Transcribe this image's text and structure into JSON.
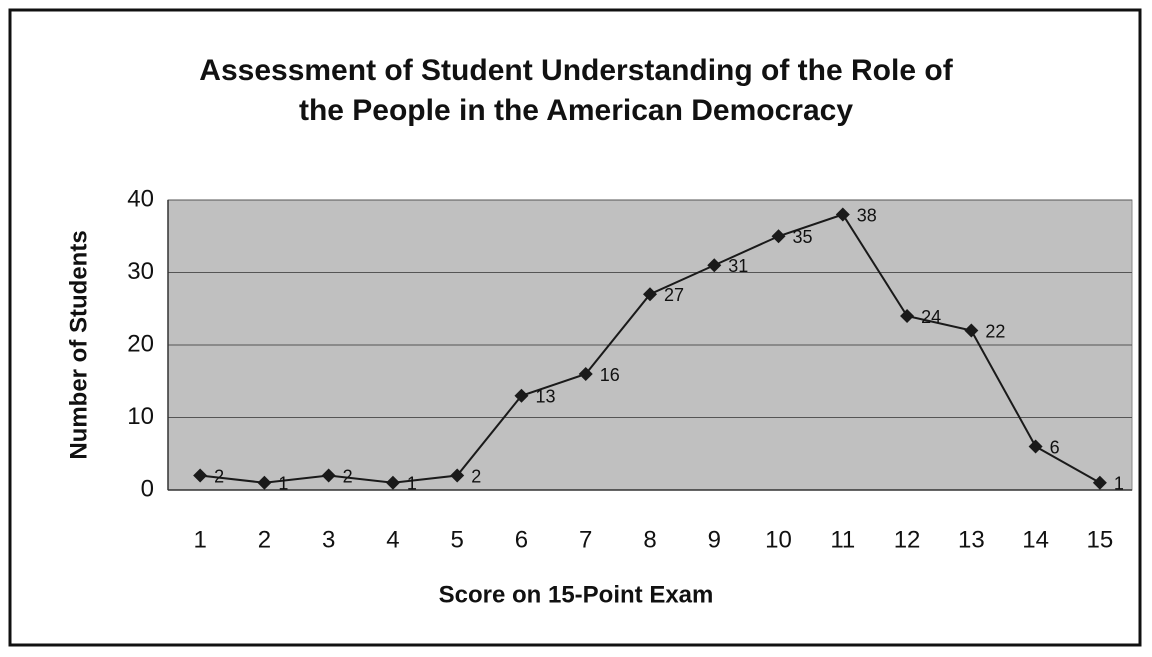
{
  "chart_data": {
    "type": "line",
    "title": [
      "Assessment of Student Understanding of the Role of",
      "the People in the American Democracy"
    ],
    "x_label": "Score on 15-Point Exam",
    "y_label": "Number of Students",
    "categories": [
      "1",
      "2",
      "3",
      "4",
      "5",
      "6",
      "7",
      "8",
      "9",
      "10",
      "11",
      "12",
      "13",
      "14",
      "15"
    ],
    "series": [
      {
        "name": "Number of Students",
        "color": "#1a1a1a",
        "values": [
          2,
          1,
          2,
          1,
          2,
          13,
          16,
          27,
          31,
          35,
          38,
          24,
          22,
          6,
          1
        ]
      }
    ],
    "ylim": [
      0,
      40
    ],
    "yticks": [
      0,
      10,
      20,
      30,
      40
    ],
    "grid": true,
    "plot_background": "#c0c0c0"
  }
}
